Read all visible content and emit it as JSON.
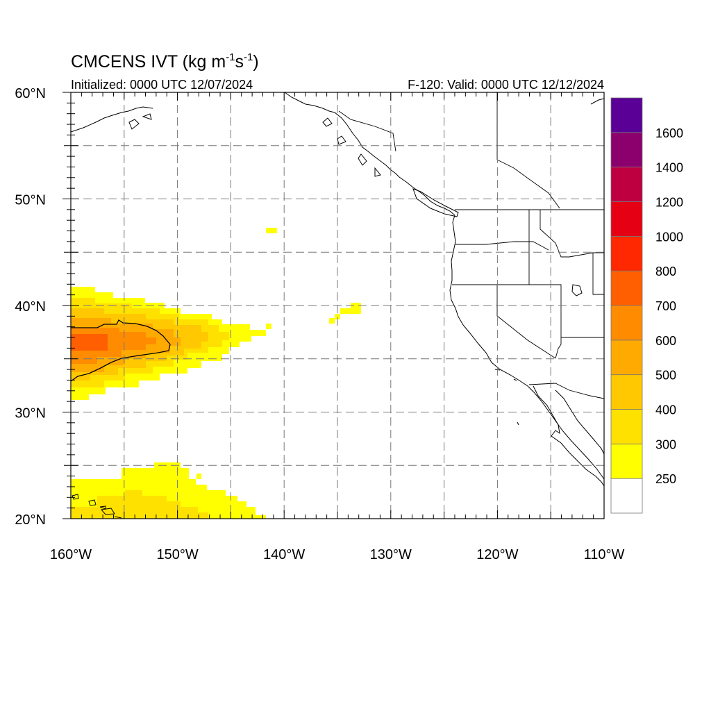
{
  "header": {
    "title_main": "CMCENS IVT (kg m",
    "title_exp1": "-1",
    "title_s": "s",
    "title_exp2": "-1",
    "title_close": ")",
    "initialized": "Initialized: 0000 UTC 12/07/2024",
    "valid": "F-120: Valid: 0000 UTC 12/12/2024"
  },
  "axes": {
    "lon_range": [
      -160,
      -110
    ],
    "lat_range": [
      20,
      60
    ],
    "x_ticks": [
      {
        "value": -160,
        "label": "160°W"
      },
      {
        "value": -150,
        "label": "150°W"
      },
      {
        "value": -140,
        "label": "140°W"
      },
      {
        "value": -130,
        "label": "130°W"
      },
      {
        "value": -120,
        "label": "120°W"
      },
      {
        "value": -110,
        "label": "110°W"
      }
    ],
    "y_ticks": [
      {
        "value": 20,
        "label": "20°N"
      },
      {
        "value": 30,
        "label": "30°N"
      },
      {
        "value": 40,
        "label": "40°N"
      },
      {
        "value": 50,
        "label": "50°N"
      },
      {
        "value": 60,
        "label": "60°N"
      }
    ],
    "grid": "dashed every 5 degrees"
  },
  "colorbar": {
    "levels": [
      250,
      300,
      400,
      500,
      600,
      700,
      800,
      1000,
      1200,
      1400,
      1600
    ],
    "labels": [
      "250",
      "300",
      "400",
      "500",
      "600",
      "700",
      "800",
      "1000",
      "1200",
      "1400",
      "1600"
    ],
    "colors": [
      "#ffffff",
      "#ffff00",
      "#ffe100",
      "#ffc800",
      "#ffaa00",
      "#ff8c00",
      "#ff5f00",
      "#ff2800",
      "#e60014",
      "#be0041",
      "#8c006e",
      "#5a0096"
    ]
  },
  "chart_data": {
    "type": "heatmap",
    "quantity": "IVT",
    "units": "kg m-1 s-1",
    "features": [
      {
        "region": "central North Pacific plume",
        "lon": [
          -160,
          -141.5
        ],
        "lat": [
          31.5,
          41.5
        ],
        "max_class": "700-800",
        "core_lon": [
          -160,
          -156.5
        ],
        "core_lat": [
          35,
          37
        ]
      },
      {
        "region": "Hawaii subtropics",
        "lon": [
          -160,
          -142
        ],
        "lat": [
          20,
          25.5
        ],
        "max_class": "300-400"
      },
      {
        "region": "isolated patches",
        "lon": [
          -141.5,
          -133.5
        ],
        "lat": [
          38.3,
          47.5
        ],
        "max_class": "250-300"
      }
    ]
  }
}
